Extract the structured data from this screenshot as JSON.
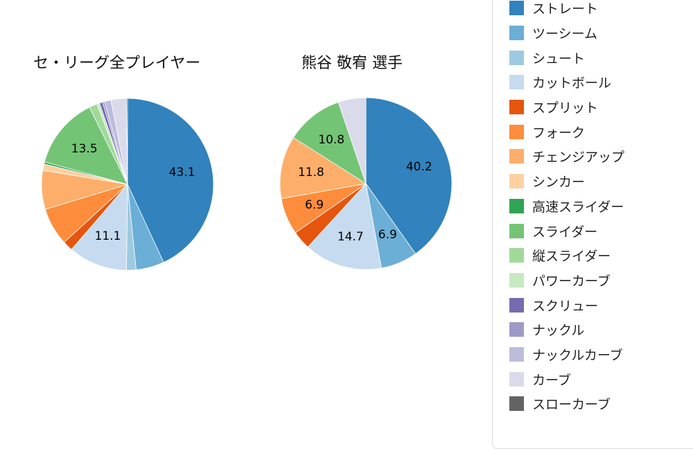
{
  "page": {
    "background_color": "#ffffff"
  },
  "chart_data": [
    {
      "type": "pie",
      "title": "セ・リーグ全プレイヤー",
      "value_unit": "percent",
      "start_angle_deg": 0,
      "direction": "clockwise",
      "slices": [
        {
          "name": "ストレート",
          "value": 43.1,
          "show_value": true
        },
        {
          "name": "ツーシーム",
          "value": 5.3,
          "show_value": false
        },
        {
          "name": "シュート",
          "value": 1.8,
          "show_value": false
        },
        {
          "name": "カットボール",
          "value": 11.1,
          "show_value": true
        },
        {
          "name": "スプリット",
          "value": 1.9,
          "show_value": false
        },
        {
          "name": "フォーク",
          "value": 7.1,
          "show_value": false
        },
        {
          "name": "チェンジアップ",
          "value": 7.3,
          "show_value": false
        },
        {
          "name": "シンカー",
          "value": 1.2,
          "show_value": false
        },
        {
          "name": "高速スライダー",
          "value": 0.4,
          "show_value": false
        },
        {
          "name": "スライダー",
          "value": 13.5,
          "show_value": true
        },
        {
          "name": "縦スライダー",
          "value": 1.5,
          "show_value": false
        },
        {
          "name": "パワーカーブ",
          "value": 0.5,
          "show_value": false
        },
        {
          "name": "スクリュー",
          "value": 0.6,
          "show_value": false
        },
        {
          "name": "ナックル",
          "value": 0.4,
          "show_value": false
        },
        {
          "name": "ナックルカーブ",
          "value": 1.2,
          "show_value": false
        },
        {
          "name": "カーブ",
          "value": 2.9,
          "show_value": false
        },
        {
          "name": "スローカーブ",
          "value": 0.2,
          "show_value": false
        }
      ]
    },
    {
      "type": "pie",
      "title": "熊谷 敬宥 選手",
      "value_unit": "percent",
      "start_angle_deg": 0,
      "direction": "clockwise",
      "slices": [
        {
          "name": "ストレート",
          "value": 40.2,
          "show_value": true
        },
        {
          "name": "ツーシーム",
          "value": 6.9,
          "show_value": true
        },
        {
          "name": "カットボール",
          "value": 14.7,
          "show_value": true
        },
        {
          "name": "スプリット",
          "value": 3.5,
          "show_value": false
        },
        {
          "name": "フォーク",
          "value": 6.9,
          "show_value": true
        },
        {
          "name": "チェンジアップ",
          "value": 11.8,
          "show_value": true
        },
        {
          "name": "スライダー",
          "value": 10.8,
          "show_value": true
        },
        {
          "name": "カーブ",
          "value": 5.2,
          "show_value": false
        }
      ]
    }
  ],
  "legend": {
    "items": [
      {
        "label": "ストレート",
        "color": "#3182bd"
      },
      {
        "label": "ツーシーム",
        "color": "#6baed6"
      },
      {
        "label": "シュート",
        "color": "#9ecae1"
      },
      {
        "label": "カットボール",
        "color": "#c6dbef"
      },
      {
        "label": "スプリット",
        "color": "#e6550d"
      },
      {
        "label": "フォーク",
        "color": "#fd8d3c"
      },
      {
        "label": "チェンジアップ",
        "color": "#fdae6b"
      },
      {
        "label": "シンカー",
        "color": "#fdd0a2"
      },
      {
        "label": "高速スライダー",
        "color": "#31a354"
      },
      {
        "label": "スライダー",
        "color": "#74c476"
      },
      {
        "label": "縦スライダー",
        "color": "#a1d99b"
      },
      {
        "label": "パワーカーブ",
        "color": "#c7e9c0"
      },
      {
        "label": "スクリュー",
        "color": "#756bb1"
      },
      {
        "label": "ナックル",
        "color": "#9e9ac8"
      },
      {
        "label": "ナックルカーブ",
        "color": "#bcbddc"
      },
      {
        "label": "カーブ",
        "color": "#dadaeb"
      },
      {
        "label": "スローカーブ",
        "color": "#636363"
      }
    ]
  }
}
